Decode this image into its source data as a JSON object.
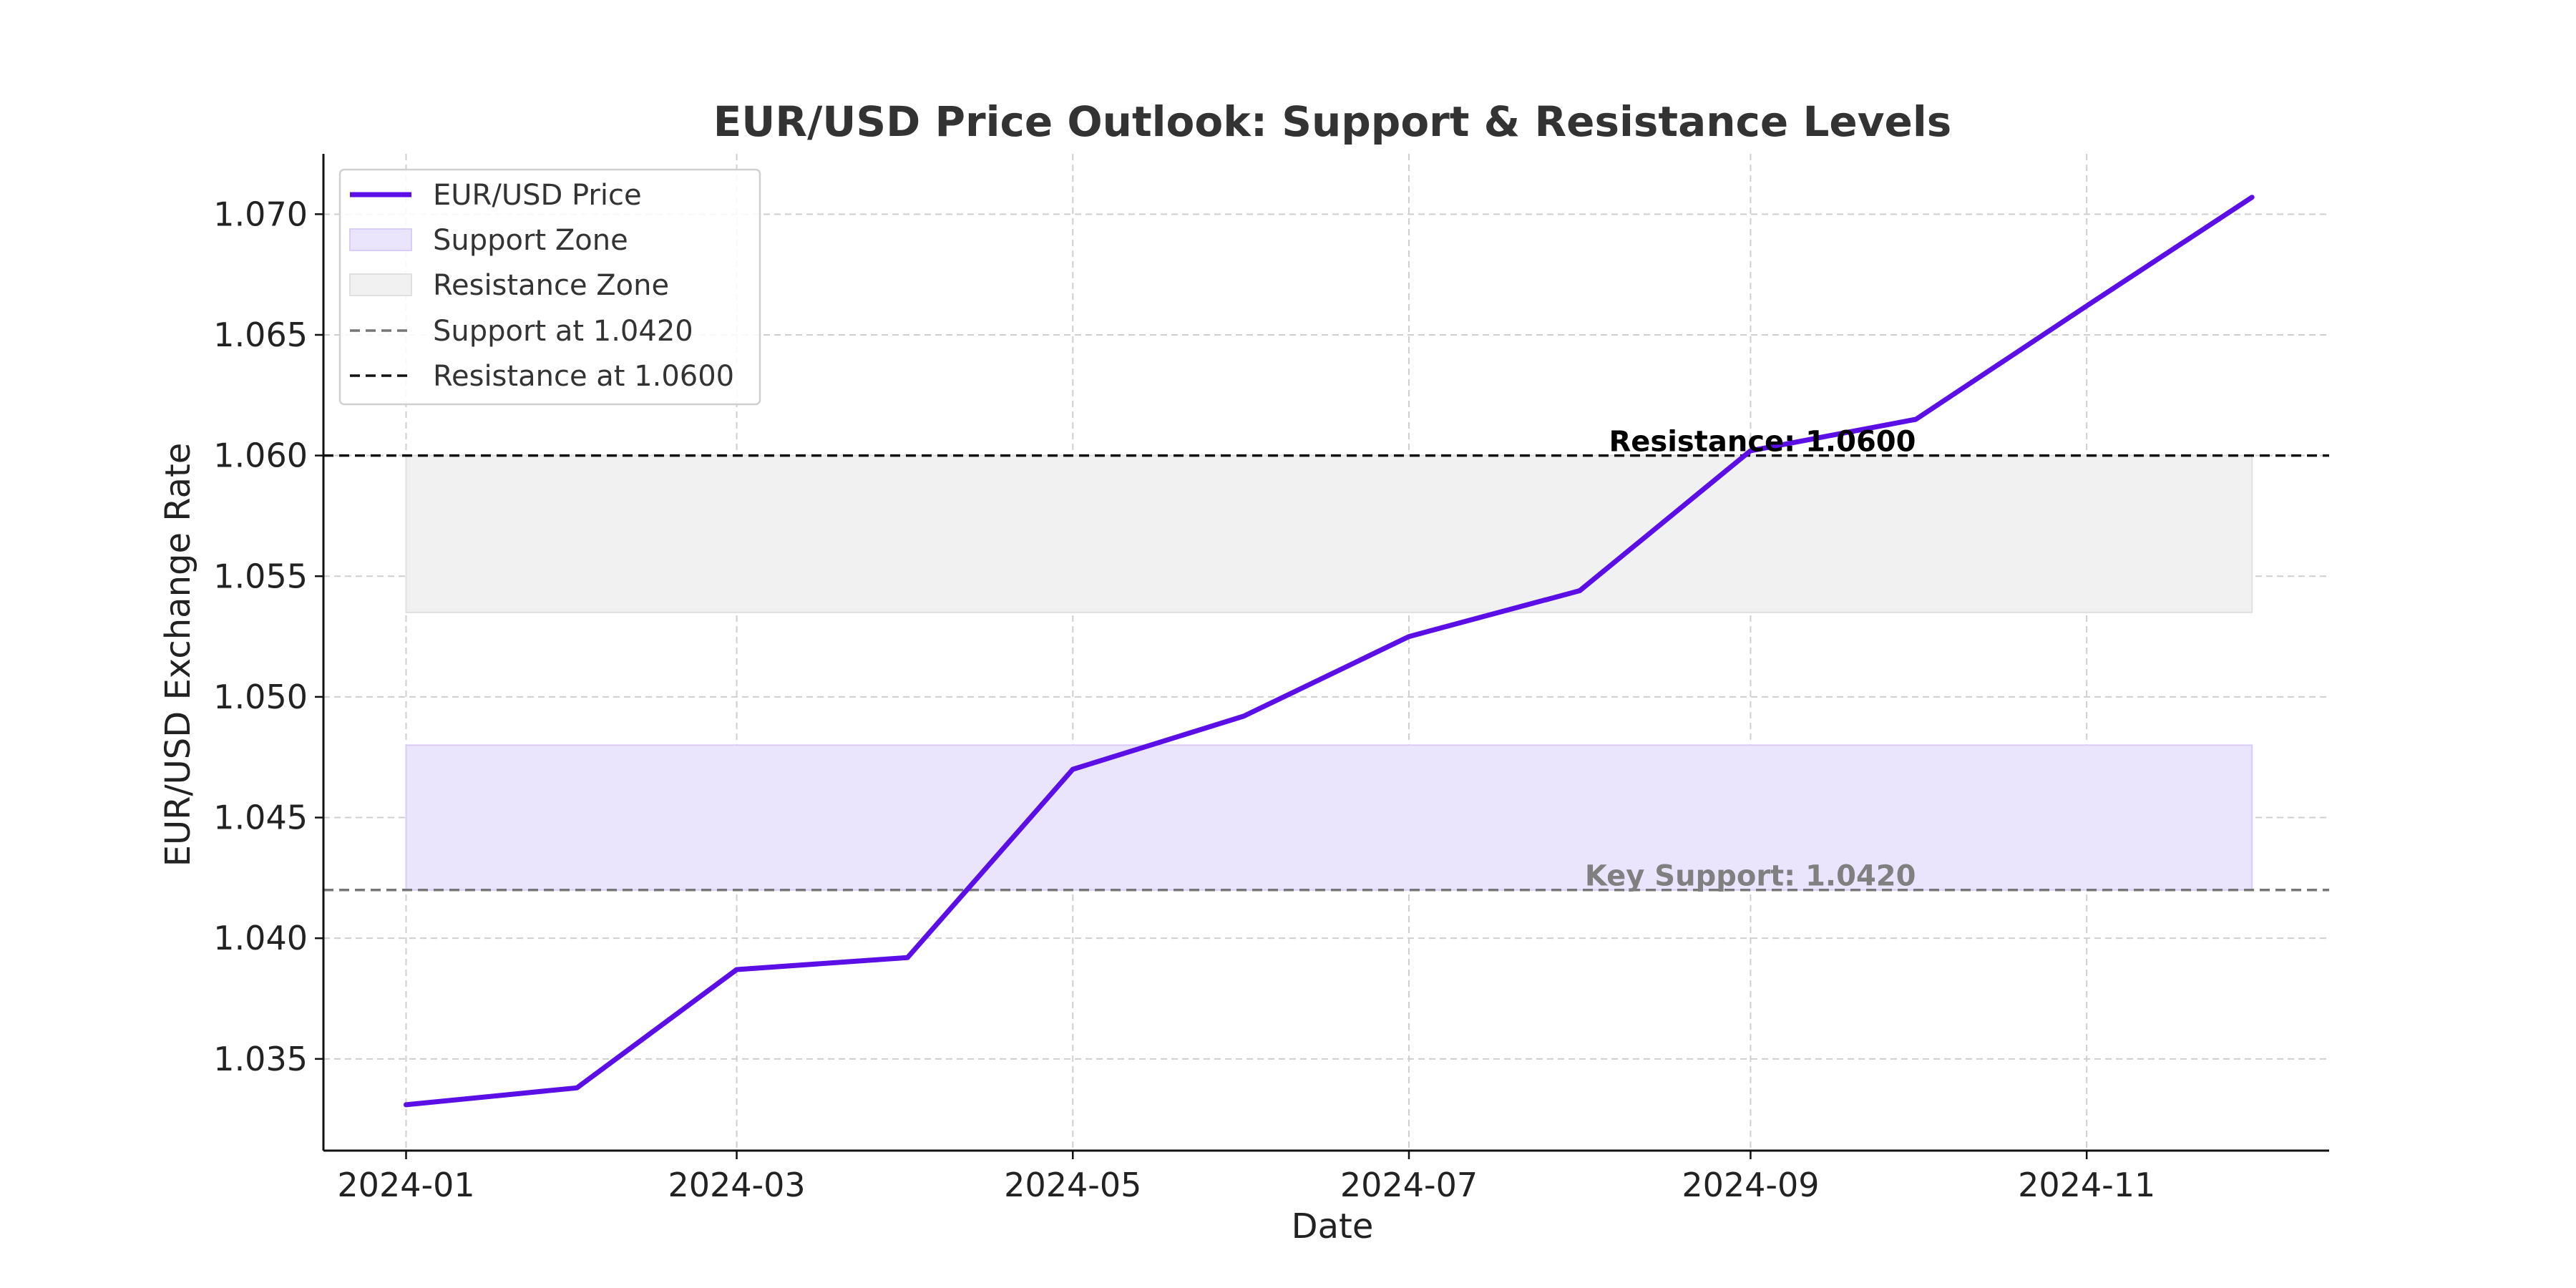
{
  "chart_data": {
    "type": "line",
    "title": "EUR/USD Price Outlook: Support & Resistance Levels",
    "xlabel": "Date",
    "ylabel": "EUR/USD Exchange Rate",
    "x": [
      "2024-01",
      "2024-02",
      "2024-03",
      "2024-04",
      "2024-05",
      "2024-06",
      "2024-07",
      "2024-08",
      "2024-09",
      "2024-10",
      "2024-11",
      "2024-12"
    ],
    "x_ticks": [
      "2024-01",
      "2024-03",
      "2024-05",
      "2024-07",
      "2024-09",
      "2024-11"
    ],
    "y_ticks": [
      1.035,
      1.04,
      1.045,
      1.05,
      1.055,
      1.06,
      1.065,
      1.07
    ],
    "y_tick_labels": [
      "1.035",
      "1.040",
      "1.045",
      "1.050",
      "1.055",
      "1.060",
      "1.065",
      "1.070"
    ],
    "xlim": [
      "2023-12-17",
      "2024-12-15"
    ],
    "ylim": [
      1.0312,
      1.0725
    ],
    "grid": true,
    "legend_placement": "top-left",
    "series": [
      {
        "name": "EUR/USD Price",
        "color": "#5b0fe6",
        "values": [
          1.0331,
          1.0338,
          1.0387,
          1.0392,
          1.047,
          1.0492,
          1.0525,
          1.0544,
          1.0602,
          1.0615,
          1.0662,
          1.0707
        ]
      }
    ],
    "zones": [
      {
        "name": "Support Zone",
        "from": 1.042,
        "to": 1.048,
        "x_from": "2024-01",
        "x_to": "2024-12",
        "color": "#ebe4fd",
        "edge_color": "#d9ccfa"
      },
      {
        "name": "Resistance Zone",
        "from": 1.0535,
        "to": 1.06,
        "x_from": "2024-01",
        "x_to": "2024-12",
        "color": "#f1f1f1",
        "edge_color": "#e0e0e0"
      }
    ],
    "lines": [
      {
        "name": "Support at 1.0420",
        "value": 1.042,
        "color": "#777777"
      },
      {
        "name": "Resistance at 1.0600",
        "value": 1.06,
        "color": "#111111"
      }
    ],
    "annotations": [
      {
        "text": "Resistance: 1.0600",
        "x": "2024-10",
        "y": 1.06,
        "color": "#000000"
      },
      {
        "text": "Key Support: 1.0420",
        "x": "2024-10",
        "y": 1.042,
        "color": "#808080"
      }
    ]
  }
}
